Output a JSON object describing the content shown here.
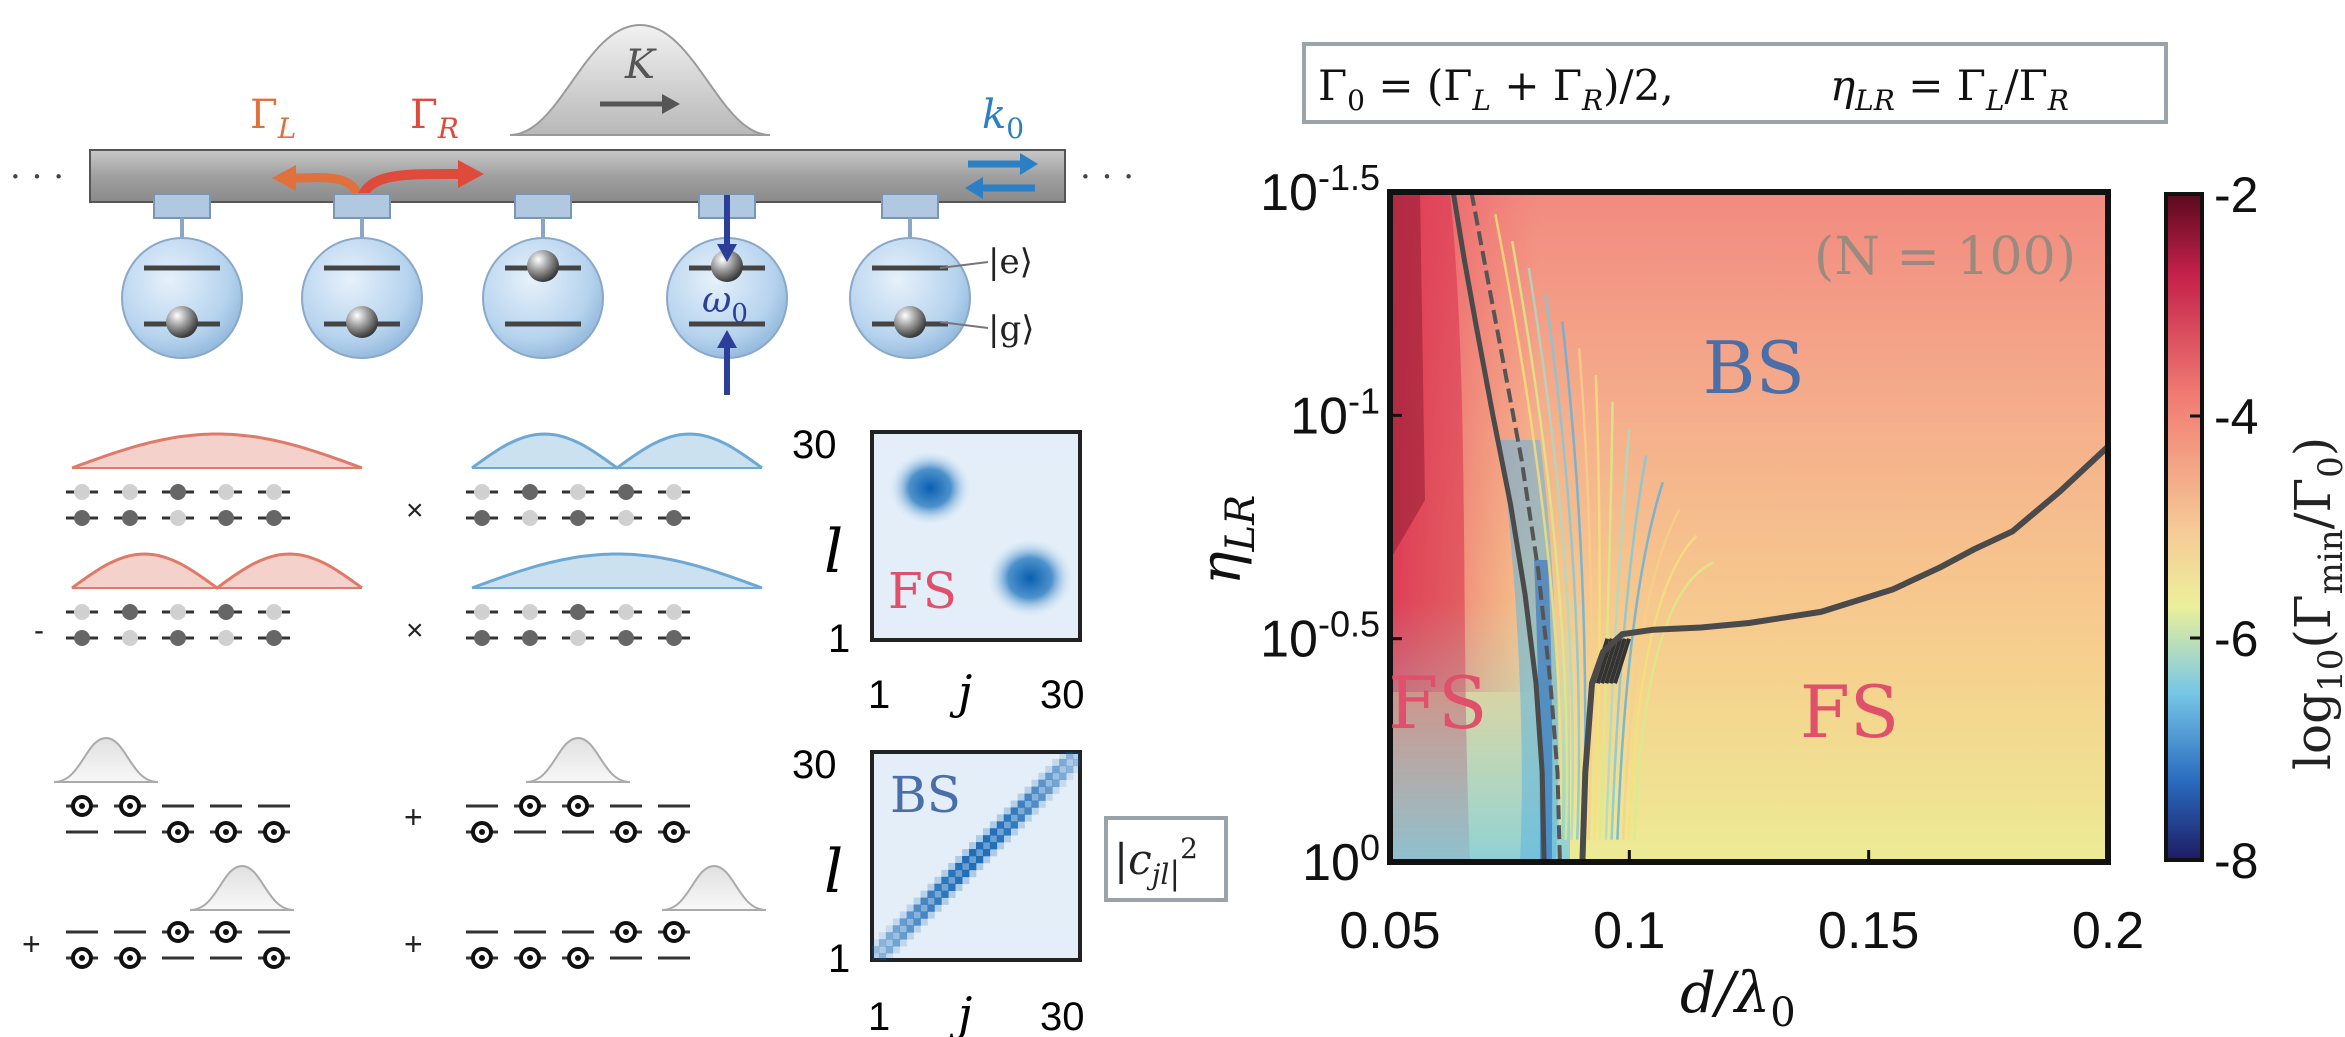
{
  "colors": {
    "left_wave": "#e07a68",
    "right_wave": "#6ca8d4",
    "gamma_L": "#e0703c",
    "gamma_R": "#e04a3a",
    "k0": "#2b7fc4",
    "omega0": "#2b3f9a",
    "fs_label": "#e0506a",
    "bs_label": "#4a6ea8",
    "waveguide": "#a9a9a9",
    "atom": "#bdd7ee",
    "boundary_line": "#4a4a4a",
    "colorbar_stops": [
      "#5a0a1e",
      "#c4204a",
      "#f07a72",
      "#f6c896",
      "#ecf09a",
      "#76c6e6",
      "#2a6cc0",
      "#1e1c64"
    ]
  },
  "schematic": {
    "gamma_L": "Γ",
    "gamma_L_sub": "L",
    "gamma_R": "Γ",
    "gamma_R_sub": "R",
    "K": "K",
    "k0": "k",
    "k0_sub": "0",
    "omega0": "ω",
    "omega0_sub": "0",
    "ket_e": "|e⟩",
    "ket_g": "|g⟩",
    "dots": "· · ·"
  },
  "states": {
    "times": "×",
    "minus": "-",
    "plus": "+"
  },
  "matrices": {
    "fs": {
      "label": "FS",
      "tick_top": "30",
      "tick_bottom": "1",
      "x_tick_left": "1",
      "x_tick_right": "30",
      "xlabel": "j",
      "ylabel": "l"
    },
    "bs": {
      "label": "BS",
      "tick_top": "30",
      "tick_bottom": "1",
      "x_tick_left": "1",
      "x_tick_right": "30",
      "xlabel": "j",
      "ylabel": "l"
    },
    "legend": "|c",
    "legend_sub": "jl",
    "legend_sup": "2"
  },
  "formula": {
    "part1": "Γ",
    "part1_sub": "0",
    "part2": " = (Γ",
    "part2_sub": "L",
    "part3": " + Γ",
    "part3_sub": "R",
    "part4": ")/2,",
    "part5": "η",
    "part5_sub": "LR",
    "part6": " = Γ",
    "part6_sub": "L",
    "part7": "/Γ",
    "part7_sub": "R"
  },
  "chart_data": {
    "type": "heatmap",
    "title": "",
    "annotation": "(N = 100)",
    "xlabel": "d/λ",
    "xlabel_sub": "0",
    "ylabel": "η",
    "ylabel_sub": "LR",
    "xlim": [
      0.05,
      0.2
    ],
    "x_ticks": [
      "0.05",
      "0.1",
      "0.15",
      "0.2"
    ],
    "x_tick_values": [
      0.05,
      0.1,
      0.15,
      0.2
    ],
    "y_scale": "log10",
    "ylim_log10": [
      0,
      -1.5
    ],
    "y_ticks": [
      {
        "base": "10",
        "exp": "0",
        "value": 0
      },
      {
        "base": "10",
        "exp": "-0.5",
        "value": -0.5
      },
      {
        "base": "10",
        "exp": "-1",
        "value": -1
      },
      {
        "base": "10",
        "exp": "-1.5",
        "value": -1.5
      }
    ],
    "colorbar": {
      "label": "log",
      "label_sub": "10",
      "label_rest": "(Γ",
      "label_sub2": "min",
      "label_rest2": "/Γ",
      "label_sub3": "0",
      "label_end": ")",
      "range": [
        -8,
        -2
      ],
      "ticks": [
        "-2",
        "-4",
        "-6",
        "-8"
      ],
      "tick_values": [
        -2,
        -4,
        -6,
        -8
      ]
    },
    "regions": [
      {
        "label": "FS",
        "x": 0.06,
        "y_log10": -0.3
      },
      {
        "label": "BS",
        "x": 0.126,
        "y_log10": -1.05
      },
      {
        "label": "FS",
        "x": 0.146,
        "y_log10": -0.28
      }
    ],
    "boundary_left": [
      {
        "x": 0.0632,
        "y": -1.5
      },
      {
        "x": 0.0655,
        "y": -1.35
      },
      {
        "x": 0.068,
        "y": -1.2
      },
      {
        "x": 0.0715,
        "y": -1.0
      },
      {
        "x": 0.0752,
        "y": -0.8
      },
      {
        "x": 0.0782,
        "y": -0.6
      },
      {
        "x": 0.0805,
        "y": -0.4
      },
      {
        "x": 0.0818,
        "y": -0.2
      },
      {
        "x": 0.0822,
        "y": 0.0
      }
    ],
    "boundary_center": [
      {
        "x": 0.067,
        "y": -1.5
      },
      {
        "x": 0.0705,
        "y": -1.3
      },
      {
        "x": 0.074,
        "y": -1.1
      },
      {
        "x": 0.0775,
        "y": -0.9
      },
      {
        "x": 0.081,
        "y": -0.65
      },
      {
        "x": 0.0835,
        "y": -0.4
      },
      {
        "x": 0.085,
        "y": -0.2
      },
      {
        "x": 0.0855,
        "y": 0.0
      }
    ],
    "boundary_right": [
      {
        "x": 0.0902,
        "y": 0.0
      },
      {
        "x": 0.0908,
        "y": -0.2
      },
      {
        "x": 0.0922,
        "y": -0.4
      },
      {
        "x": 0.0945,
        "y": -0.47
      },
      {
        "x": 0.0985,
        "y": -0.51
      },
      {
        "x": 0.105,
        "y": -0.52
      },
      {
        "x": 0.115,
        "y": -0.525
      },
      {
        "x": 0.125,
        "y": -0.535
      },
      {
        "x": 0.14,
        "y": -0.56
      },
      {
        "x": 0.155,
        "y": -0.61
      },
      {
        "x": 0.165,
        "y": -0.66
      },
      {
        "x": 0.172,
        "y": -0.7
      },
      {
        "x": 0.18,
        "y": -0.74
      },
      {
        "x": 0.19,
        "y": -0.83
      },
      {
        "x": 0.2,
        "y": -0.93
      }
    ]
  }
}
